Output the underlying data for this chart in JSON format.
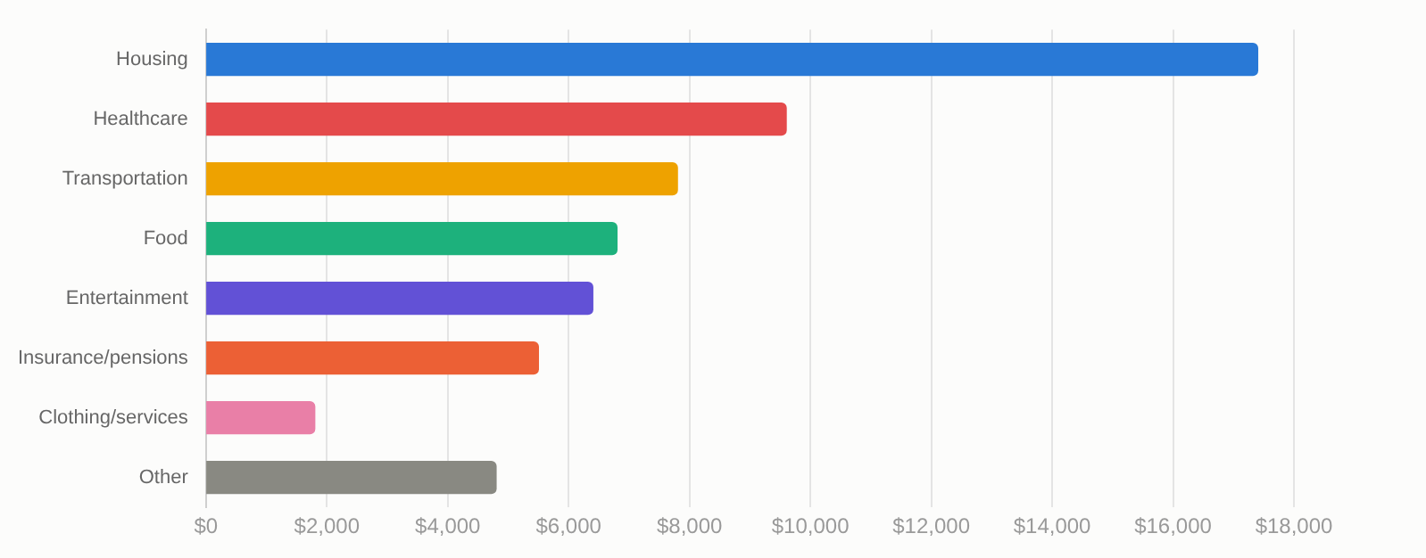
{
  "chart_data": {
    "type": "bar",
    "orientation": "horizontal",
    "categories": [
      "Housing",
      "Healthcare",
      "Transportation",
      "Food",
      "Entertainment",
      "Insurance/pensions",
      "Clothing/services",
      "Other"
    ],
    "values": [
      17400,
      9600,
      7800,
      6800,
      6400,
      5500,
      1800,
      4800
    ],
    "colors": [
      "#2979d6",
      "#e44a4b",
      "#eea200",
      "#1db17c",
      "#6251d6",
      "#ec6035",
      "#e97fa7",
      "#898982"
    ],
    "xlim": [
      0,
      18000
    ],
    "xticks": [
      {
        "value": 0,
        "label": "$0"
      },
      {
        "value": 2000,
        "label": "$2,000"
      },
      {
        "value": 4000,
        "label": "$4,000"
      },
      {
        "value": 6000,
        "label": "$6,000"
      },
      {
        "value": 8000,
        "label": "$8,000"
      },
      {
        "value": 10000,
        "label": "$10,000"
      },
      {
        "value": 12000,
        "label": "$12,000"
      },
      {
        "value": 14000,
        "label": "$14,000"
      },
      {
        "value": 16000,
        "label": "$16,000"
      },
      {
        "value": 18000,
        "label": "$18,000"
      }
    ],
    "grid": "x"
  }
}
